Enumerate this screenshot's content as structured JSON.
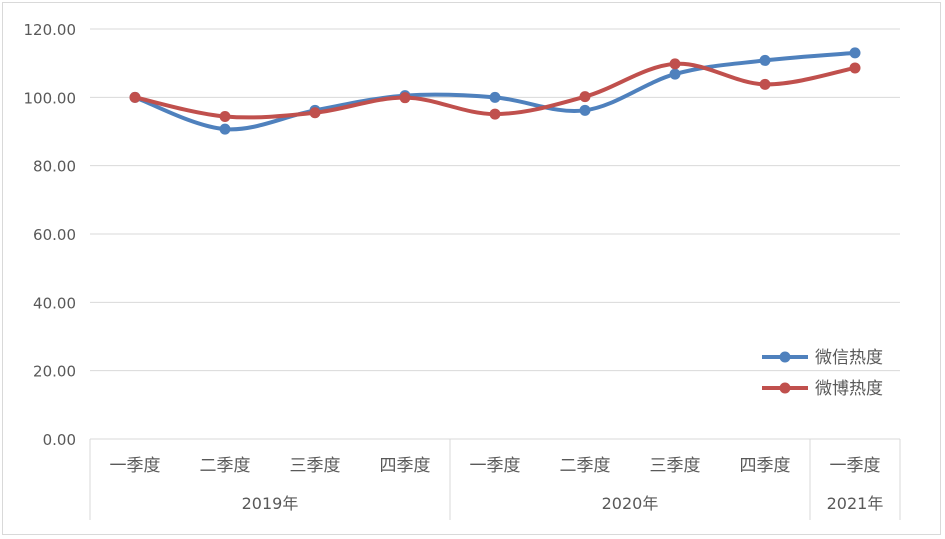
{
  "chart_data": {
    "type": "line",
    "title": "",
    "xlabel": "",
    "ylabel": "",
    "ylim": [
      0,
      120
    ],
    "y_ticks": [
      "0.00",
      "20.00",
      "40.00",
      "60.00",
      "80.00",
      "100.00",
      "120.00"
    ],
    "categories": [
      "一季度",
      "二季度",
      "三季度",
      "四季度",
      "一季度",
      "二季度",
      "三季度",
      "四季度",
      "一季度"
    ],
    "groups": [
      {
        "label": "2019年",
        "count": 4
      },
      {
        "label": "2020年",
        "count": 4
      },
      {
        "label": "2021年",
        "count": 1
      }
    ],
    "series": [
      {
        "name": "微信热度",
        "color": "#4f81bd",
        "values": [
          100,
          90.7,
          96.2,
          100.5,
          100.0,
          96.2,
          106.8,
          110.8,
          113.0
        ]
      },
      {
        "name": "微博热度",
        "color": "#c0504d",
        "values": [
          100,
          94.4,
          95.5,
          99.9,
          95.1,
          100.2,
          109.8,
          103.8,
          108.6
        ]
      }
    ],
    "grid": true,
    "legend_position": "right"
  }
}
